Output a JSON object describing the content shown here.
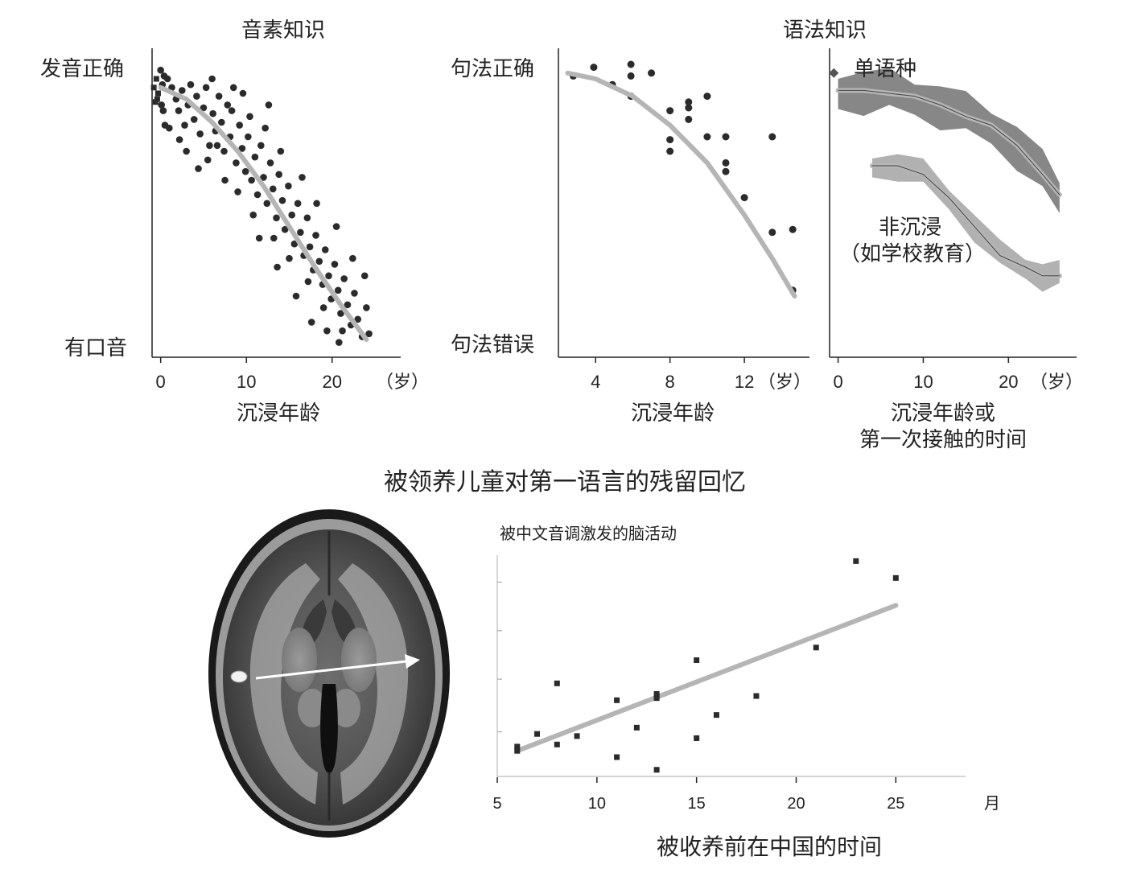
{
  "figure_caption": "被领养儿童对第一语言的残留回忆",
  "chart_data": [
    {
      "id": "phoneme",
      "type": "scatter",
      "title": "音素知识",
      "xlabel": "沉浸年龄",
      "x_unit": "（岁）",
      "y_top_label": "发音正确",
      "y_bottom_label": "有口音",
      "x_ticks": [
        "0",
        "10",
        "20"
      ],
      "xlim": [
        -1,
        28
      ],
      "ylim": [
        0,
        1
      ],
      "colors": {
        "points": "#2b2b2b",
        "fit": "#b5b5b5"
      },
      "fit": [
        [
          0,
          0.92
        ],
        [
          3,
          0.88
        ],
        [
          6,
          0.8
        ],
        [
          9,
          0.7
        ],
        [
          12,
          0.58
        ],
        [
          15,
          0.44
        ],
        [
          18,
          0.3
        ],
        [
          21,
          0.17
        ],
        [
          24,
          0.05
        ]
      ],
      "points": [
        [
          -0.8,
          0.92
        ],
        [
          -0.6,
          0.87
        ],
        [
          -0.5,
          0.95
        ],
        [
          -0.3,
          0.9
        ],
        [
          0.0,
          0.98
        ],
        [
          0.2,
          0.93
        ],
        [
          0.4,
          0.96
        ],
        [
          -0.4,
          0.88
        ],
        [
          0.3,
          0.84
        ],
        [
          0.5,
          0.79
        ],
        [
          0.1,
          0.86
        ],
        [
          0.8,
          0.95
        ],
        [
          1.3,
          0.92
        ],
        [
          1.8,
          0.88
        ],
        [
          2.1,
          0.84
        ],
        [
          2.5,
          0.91
        ],
        [
          2.8,
          0.79
        ],
        [
          3.2,
          0.86
        ],
        [
          3.5,
          0.93
        ],
        [
          3.9,
          0.81
        ],
        [
          4.2,
          0.89
        ],
        [
          4.6,
          0.76
        ],
        [
          5.0,
          0.85
        ],
        [
          5.3,
          0.92
        ],
        [
          5.7,
          0.72
        ],
        [
          6.1,
          0.83
        ],
        [
          6.4,
          0.77
        ],
        [
          6.8,
          0.89
        ],
        [
          7.1,
          0.8
        ],
        [
          7.4,
          0.7
        ],
        [
          7.8,
          0.86
        ],
        [
          8.1,
          0.75
        ],
        [
          8.5,
          0.92
        ],
        [
          8.8,
          0.66
        ],
        [
          9.2,
          0.79
        ],
        [
          9.5,
          0.71
        ],
        [
          9.9,
          0.63
        ],
        [
          10.2,
          0.75
        ],
        [
          10.6,
          0.6
        ],
        [
          11.0,
          0.68
        ],
        [
          11.3,
          0.55
        ],
        [
          11.7,
          0.72
        ],
        [
          12.0,
          0.61
        ],
        [
          12.4,
          0.52
        ],
        [
          12.8,
          0.66
        ],
        [
          13.1,
          0.57
        ],
        [
          13.5,
          0.47
        ],
        [
          13.8,
          0.62
        ],
        [
          14.2,
          0.53
        ],
        [
          14.5,
          0.43
        ],
        [
          14.9,
          0.58
        ],
        [
          15.3,
          0.48
        ],
        [
          15.6,
          0.38
        ],
        [
          16.0,
          0.52
        ],
        [
          16.3,
          0.42
        ],
        [
          16.7,
          0.34
        ],
        [
          17.1,
          0.47
        ],
        [
          17.4,
          0.37
        ],
        [
          17.8,
          0.29
        ],
        [
          18.1,
          0.41
        ],
        [
          18.5,
          0.32
        ],
        [
          18.9,
          0.24
        ],
        [
          19.2,
          0.36
        ],
        [
          19.6,
          0.27
        ],
        [
          19.9,
          0.19
        ],
        [
          20.3,
          0.31
        ],
        [
          20.7,
          0.22
        ],
        [
          21.0,
          0.14
        ],
        [
          21.4,
          0.26
        ],
        [
          21.8,
          0.17
        ],
        [
          22.2,
          0.1
        ],
        [
          22.6,
          0.21
        ],
        [
          23.0,
          0.12
        ],
        [
          23.5,
          0.06
        ],
        [
          24.0,
          0.16
        ],
        [
          24.3,
          0.07
        ],
        [
          1.0,
          0.78
        ],
        [
          3.0,
          0.7
        ],
        [
          5.5,
          0.67
        ],
        [
          7.5,
          0.6
        ],
        [
          9.0,
          0.56
        ],
        [
          10.8,
          0.48
        ],
        [
          13.2,
          0.4
        ],
        [
          15.0,
          0.33
        ],
        [
          17.2,
          0.25
        ],
        [
          19.0,
          0.16
        ],
        [
          21.2,
          0.08
        ],
        [
          2.2,
          0.74
        ],
        [
          4.4,
          0.64
        ],
        [
          6.6,
          0.72
        ],
        [
          8.3,
          0.84
        ],
        [
          10.4,
          0.82
        ],
        [
          12.2,
          0.78
        ],
        [
          14.0,
          0.7
        ],
        [
          16.5,
          0.61
        ],
        [
          18.2,
          0.52
        ],
        [
          20.5,
          0.44
        ],
        [
          22.4,
          0.33
        ],
        [
          23.8,
          0.27
        ],
        [
          11.5,
          0.4
        ],
        [
          13.6,
          0.3
        ],
        [
          15.8,
          0.2
        ],
        [
          17.6,
          0.11
        ],
        [
          19.4,
          0.08
        ],
        [
          20.8,
          0.04
        ],
        [
          6.0,
          0.95
        ],
        [
          9.6,
          0.9
        ],
        [
          12.6,
          0.86
        ]
      ]
    },
    {
      "id": "syntax",
      "type": "scatter",
      "title": "语法知识",
      "xlabel": "沉浸年龄",
      "x_unit": "（岁）",
      "y_top_label": "句法正确",
      "y_bottom_label": "句法错误",
      "x_ticks": [
        "4",
        "8",
        "12"
      ],
      "xlim": [
        2,
        15.5
      ],
      "ylim": [
        0,
        1
      ],
      "colors": {
        "points": "#2b2b2b",
        "fit": "#b5b5b5"
      },
      "fit": [
        [
          2.5,
          0.97
        ],
        [
          4,
          0.95
        ],
        [
          6,
          0.89
        ],
        [
          8,
          0.79
        ],
        [
          10,
          0.66
        ],
        [
          12,
          0.48
        ],
        [
          13.5,
          0.33
        ],
        [
          14.7,
          0.2
        ]
      ],
      "points": [
        [
          2.8,
          0.96
        ],
        [
          3.9,
          0.99
        ],
        [
          4.9,
          0.93
        ],
        [
          5.9,
          0.89
        ],
        [
          5.9,
          0.96
        ],
        [
          5.9,
          1.0
        ],
        [
          7.0,
          0.97
        ],
        [
          8.0,
          0.84
        ],
        [
          8.0,
          0.74
        ],
        [
          8.0,
          0.7
        ],
        [
          9.0,
          0.87
        ],
        [
          9.0,
          0.85
        ],
        [
          9.0,
          0.81
        ],
        [
          10.0,
          0.75
        ],
        [
          10.0,
          0.89
        ],
        [
          11.0,
          0.75
        ],
        [
          11.0,
          0.66
        ],
        [
          11.0,
          0.63
        ],
        [
          12.0,
          0.54
        ],
        [
          13.5,
          0.75
        ],
        [
          13.5,
          0.42
        ],
        [
          14.6,
          0.43
        ],
        [
          14.6,
          0.22
        ]
      ]
    },
    {
      "id": "exposure",
      "type": "line",
      "xlabel": "沉浸年龄或\n第一次接触的时间",
      "xlabel_line1": "沉浸年龄或",
      "xlabel_line2": "第一次接触的时间",
      "x_unit": "（岁）",
      "x_ticks": [
        "0",
        "10",
        "20"
      ],
      "xlim": [
        -1,
        28
      ],
      "ylim": [
        0,
        1
      ],
      "colors": {
        "monolingual": "#7a7a7a",
        "nonimmersion": "#a9a9a9",
        "fit": "#b5b5b5"
      },
      "series": [
        {
          "name": "单语种",
          "label": "单语种",
          "marker_x": -0.5,
          "marker_y": 0.97,
          "values": [
            [
              0,
              0.91
            ],
            [
              3,
              0.91
            ],
            [
              6,
              0.9
            ],
            [
              9,
              0.89
            ],
            [
              12,
              0.86
            ],
            [
              15,
              0.82
            ],
            [
              18,
              0.79
            ],
            [
              21,
              0.72
            ],
            [
              24,
              0.62
            ],
            [
              26,
              0.55
            ]
          ],
          "band": 0.04
        },
        {
          "name": "非沉浸（如学校教育）",
          "label_line1": "非沉浸",
          "label_line2": "（如学校教育）",
          "values": [
            [
              4,
              0.65
            ],
            [
              7,
              0.65
            ],
            [
              10,
              0.62
            ],
            [
              13,
              0.54
            ],
            [
              16,
              0.44
            ],
            [
              19,
              0.34
            ],
            [
              22,
              0.3
            ],
            [
              24,
              0.27
            ],
            [
              26,
              0.27
            ]
          ],
          "band": 0.025
        }
      ]
    },
    {
      "id": "brain",
      "type": "scatter",
      "title": "被中文音调激发的脑活动",
      "xlabel": "被收养前在中国的时间",
      "x_unit": "月",
      "x_ticks": [
        "5",
        "10",
        "15",
        "20",
        "25"
      ],
      "xlim": [
        5,
        28.5
      ],
      "ylim": [
        0,
        1
      ],
      "colors": {
        "points": "#2b2b2b",
        "fit": "#b5b5b5"
      },
      "fit": [
        [
          6,
          0.11
        ],
        [
          25,
          0.8
        ]
      ],
      "points": [
        [
          6,
          0.13
        ],
        [
          6,
          0.11
        ],
        [
          7,
          0.19
        ],
        [
          8,
          0.14
        ],
        [
          8,
          0.43
        ],
        [
          9,
          0.18
        ],
        [
          11,
          0.08
        ],
        [
          11,
          0.35
        ],
        [
          12,
          0.22
        ],
        [
          13,
          0.02
        ],
        [
          13,
          0.36
        ],
        [
          13,
          0.37
        ],
        [
          13,
          0.38
        ],
        [
          15,
          0.17
        ],
        [
          15,
          0.54
        ],
        [
          16,
          0.28
        ],
        [
          18,
          0.37
        ],
        [
          21,
          0.6
        ],
        [
          23,
          1.01
        ],
        [
          25,
          0.93
        ]
      ]
    }
  ]
}
